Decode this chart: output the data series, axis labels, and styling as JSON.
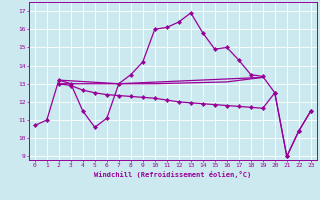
{
  "xlabel": "Windchill (Refroidissement éolien,°C)",
  "xlim": [
    -0.5,
    23.5
  ],
  "ylim": [
    8.8,
    17.5
  ],
  "yticks": [
    9,
    10,
    11,
    12,
    13,
    14,
    15,
    16,
    17
  ],
  "xticks": [
    0,
    1,
    2,
    3,
    4,
    5,
    6,
    7,
    8,
    9,
    10,
    11,
    12,
    13,
    14,
    15,
    16,
    17,
    18,
    19,
    20,
    21,
    22,
    23
  ],
  "bg_color": "#cce9f0",
  "grid_color": "#ffffff",
  "line_color": "#990099",
  "line1_x": [
    0,
    1,
    2,
    3,
    4,
    5,
    6,
    7,
    8,
    9,
    10,
    11,
    12,
    13,
    14,
    15,
    16,
    17,
    18,
    19,
    20,
    21,
    22,
    23
  ],
  "line1_y": [
    10.7,
    11.0,
    13.2,
    13.0,
    11.5,
    10.6,
    11.1,
    13.0,
    13.5,
    14.2,
    16.0,
    16.1,
    16.4,
    16.9,
    15.8,
    14.9,
    15.0,
    14.3,
    13.5,
    13.4,
    12.5,
    9.0,
    10.4,
    11.5
  ],
  "line2_x": [
    2,
    7,
    19
  ],
  "line2_y": [
    13.2,
    13.0,
    13.35
  ],
  "line3_x": [
    2,
    7,
    10,
    13,
    16,
    19
  ],
  "line3_y": [
    13.0,
    13.0,
    13.0,
    13.05,
    13.1,
    13.35
  ],
  "line4_x": [
    2,
    3,
    4,
    5,
    6,
    7,
    8,
    9,
    10,
    11,
    12,
    13,
    14,
    15,
    16,
    17,
    18,
    19,
    20,
    21,
    22,
    23
  ],
  "line4_y": [
    13.0,
    12.9,
    12.65,
    12.5,
    12.4,
    12.35,
    12.3,
    12.25,
    12.2,
    12.1,
    12.0,
    11.95,
    11.9,
    11.85,
    11.8,
    11.75,
    11.7,
    11.65,
    12.5,
    9.0,
    10.4,
    11.5
  ]
}
